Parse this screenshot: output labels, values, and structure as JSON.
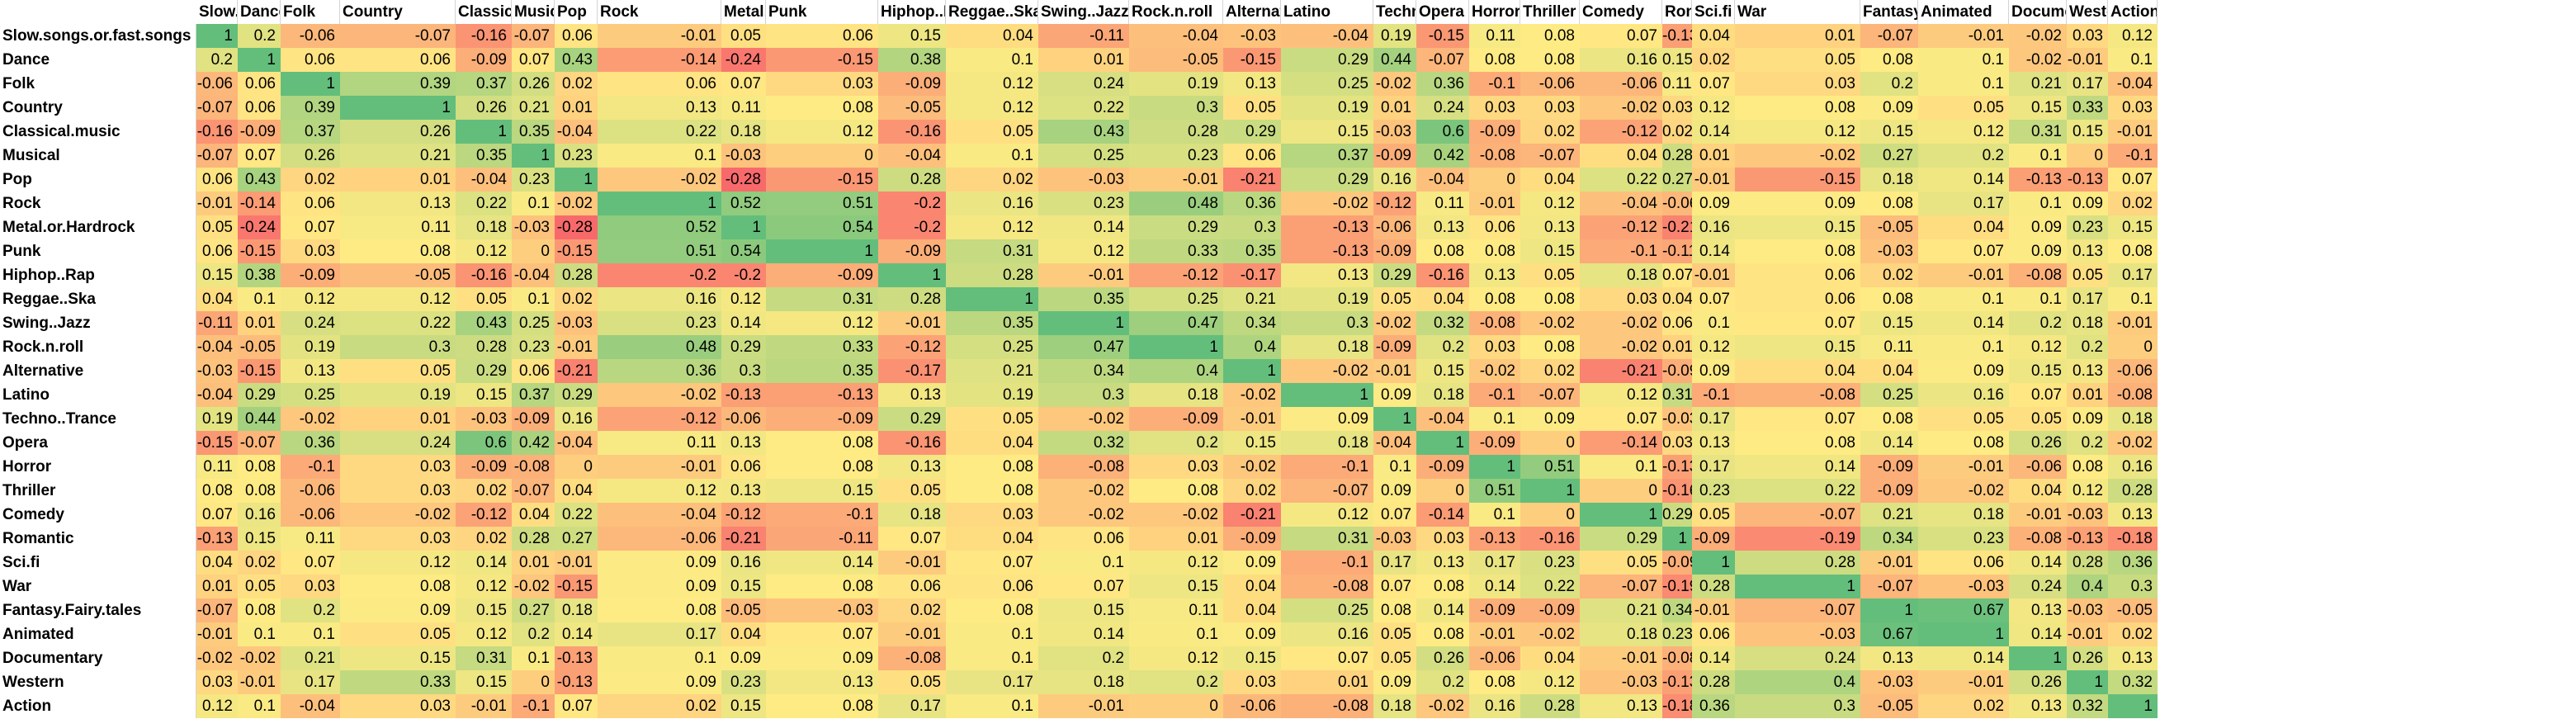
{
  "chart_data": {
    "type": "heatmap",
    "colors": {
      "low": "#f8696b",
      "mid": "#ffeb84",
      "high": "#63be7b"
    },
    "columns": [
      "Slow.songs.or.fast.songs",
      "Dance",
      "Folk",
      "Country",
      "Classical.music",
      "Musical",
      "Pop",
      "Rock",
      "Metal.or.Hardrock",
      "Punk",
      "Hiphop..Rap",
      "Reggae..Ska",
      "Swing..Jazz",
      "Rock.n.roll",
      "Alternative",
      "Latino",
      "Techno..Trance",
      "Opera",
      "Horror",
      "Thriller",
      "Comedy",
      "Romantic",
      "Sci.fi",
      "War",
      "Fantasy.Fairy.tales",
      "Animated",
      "Documentary",
      "Western",
      "Action"
    ],
    "rows": [
      "Slow.songs.or.fast.songs",
      "Dance",
      "Folk",
      "Country",
      "Classical.music",
      "Musical",
      "Pop",
      "Rock",
      "Metal.or.Hardrock",
      "Punk",
      "Hiphop..Rap",
      "Reggae..Ska",
      "Swing..Jazz",
      "Rock.n.roll",
      "Alternative",
      "Latino",
      "Techno..Trance",
      "Opera",
      "Horror",
      "Thriller",
      "Comedy",
      "Romantic",
      "Sci.fi",
      "War",
      "Fantasy.Fairy.tales",
      "Animated",
      "Documentary",
      "Western",
      "Action"
    ],
    "values": [
      [
        1,
        0.2,
        -0.06,
        -0.07,
        -0.16,
        -0.07,
        0.06,
        -0.01,
        0.05,
        0.06,
        0.15,
        0.04,
        -0.11,
        -0.04,
        -0.03,
        -0.04,
        0.19,
        -0.15,
        0.11,
        0.08,
        0.07,
        -0.13,
        0.04,
        0.01,
        -0.07,
        -0.01,
        -0.02,
        0.03,
        0.12
      ],
      [
        0.2,
        1,
        0.06,
        0.06,
        -0.09,
        0.07,
        0.43,
        -0.14,
        -0.24,
        -0.15,
        0.38,
        0.1,
        0.01,
        -0.05,
        -0.15,
        0.29,
        0.44,
        -0.07,
        0.08,
        0.08,
        0.16,
        0.15,
        0.02,
        0.05,
        0.08,
        0.1,
        -0.02,
        -0.01,
        0.1
      ],
      [
        -0.06,
        0.06,
        1,
        0.39,
        0.37,
        0.26,
        0.02,
        0.06,
        0.07,
        0.03,
        -0.09,
        0.12,
        0.24,
        0.19,
        0.13,
        0.25,
        -0.02,
        0.36,
        -0.1,
        -0.06,
        -0.06,
        0.11,
        0.07,
        0.03,
        0.2,
        0.1,
        0.21,
        0.17,
        -0.04
      ],
      [
        -0.07,
        0.06,
        0.39,
        1,
        0.26,
        0.21,
        0.01,
        0.13,
        0.11,
        0.08,
        -0.05,
        0.12,
        0.22,
        0.3,
        0.05,
        0.19,
        0.01,
        0.24,
        0.03,
        0.03,
        -0.02,
        0.03,
        0.12,
        0.08,
        0.09,
        0.05,
        0.15,
        0.33,
        0.03
      ],
      [
        -0.16,
        -0.09,
        0.37,
        0.26,
        1,
        0.35,
        -0.04,
        0.22,
        0.18,
        0.12,
        -0.16,
        0.05,
        0.43,
        0.28,
        0.29,
        0.15,
        -0.03,
        0.6,
        -0.09,
        0.02,
        -0.12,
        0.02,
        0.14,
        0.12,
        0.15,
        0.12,
        0.31,
        0.15,
        -0.01
      ],
      [
        -0.07,
        0.07,
        0.26,
        0.21,
        0.35,
        1,
        0.23,
        0.1,
        -0.03,
        0,
        -0.04,
        0.1,
        0.25,
        0.23,
        0.06,
        0.37,
        -0.09,
        0.42,
        -0.08,
        -0.07,
        0.04,
        0.28,
        0.01,
        -0.02,
        0.27,
        0.2,
        0.1,
        0,
        -0.1
      ],
      [
        0.06,
        0.43,
        0.02,
        0.01,
        -0.04,
        0.23,
        1,
        -0.02,
        -0.28,
        -0.15,
        0.28,
        0.02,
        -0.03,
        -0.01,
        -0.21,
        0.29,
        0.16,
        -0.04,
        0,
        0.04,
        0.22,
        0.27,
        -0.01,
        -0.15,
        0.18,
        0.14,
        -0.13,
        -0.13,
        0.07
      ],
      [
        -0.01,
        -0.14,
        0.06,
        0.13,
        0.22,
        0.1,
        -0.02,
        1,
        0.52,
        0.51,
        -0.2,
        0.16,
        0.23,
        0.48,
        0.36,
        -0.02,
        -0.12,
        0.11,
        -0.01,
        0.12,
        -0.04,
        -0.06,
        0.09,
        0.09,
        0.08,
        0.17,
        0.1,
        0.09,
        0.02
      ],
      [
        0.05,
        -0.24,
        0.07,
        0.11,
        0.18,
        -0.03,
        -0.28,
        0.52,
        1,
        0.54,
        -0.2,
        0.12,
        0.14,
        0.29,
        0.3,
        -0.13,
        -0.06,
        0.13,
        0.06,
        0.13,
        -0.12,
        -0.21,
        0.16,
        0.15,
        -0.05,
        0.04,
        0.09,
        0.23,
        0.15
      ],
      [
        0.06,
        -0.15,
        0.03,
        0.08,
        0.12,
        0,
        -0.15,
        0.51,
        0.54,
        1,
        -0.09,
        0.31,
        0.12,
        0.33,
        0.35,
        -0.13,
        -0.09,
        0.08,
        0.08,
        0.15,
        -0.1,
        -0.11,
        0.14,
        0.08,
        -0.03,
        0.07,
        0.09,
        0.13,
        0.08
      ],
      [
        0.15,
        0.38,
        -0.09,
        -0.05,
        -0.16,
        -0.04,
        0.28,
        -0.2,
        -0.2,
        -0.09,
        1,
        0.28,
        -0.01,
        -0.12,
        -0.17,
        0.13,
        0.29,
        -0.16,
        0.13,
        0.05,
        0.18,
        0.07,
        -0.01,
        0.06,
        0.02,
        -0.01,
        -0.08,
        0.05,
        0.17
      ],
      [
        0.04,
        0.1,
        0.12,
        0.12,
        0.05,
        0.1,
        0.02,
        0.16,
        0.12,
        0.31,
        0.28,
        1,
        0.35,
        0.25,
        0.21,
        0.19,
        0.05,
        0.04,
        0.08,
        0.08,
        0.03,
        0.04,
        0.07,
        0.06,
        0.08,
        0.1,
        0.1,
        0.17,
        0.1
      ],
      [
        -0.11,
        0.01,
        0.24,
        0.22,
        0.43,
        0.25,
        -0.03,
        0.23,
        0.14,
        0.12,
        -0.01,
        0.35,
        1,
        0.47,
        0.34,
        0.3,
        -0.02,
        0.32,
        -0.08,
        -0.02,
        -0.02,
        0.06,
        0.1,
        0.07,
        0.15,
        0.14,
        0.2,
        0.18,
        -0.01
      ],
      [
        -0.04,
        -0.05,
        0.19,
        0.3,
        0.28,
        0.23,
        -0.01,
        0.48,
        0.29,
        0.33,
        -0.12,
        0.25,
        0.47,
        1,
        0.4,
        0.18,
        -0.09,
        0.2,
        0.03,
        0.08,
        -0.02,
        0.01,
        0.12,
        0.15,
        0.11,
        0.1,
        0.12,
        0.2,
        0
      ],
      [
        -0.03,
        -0.15,
        0.13,
        0.05,
        0.29,
        0.06,
        -0.21,
        0.36,
        0.3,
        0.35,
        -0.17,
        0.21,
        0.34,
        0.4,
        1,
        -0.02,
        -0.01,
        0.15,
        -0.02,
        0.02,
        -0.21,
        -0.09,
        0.09,
        0.04,
        0.04,
        0.09,
        0.15,
        0.13,
        -0.06
      ],
      [
        -0.04,
        0.29,
        0.25,
        0.19,
        0.15,
        0.37,
        0.29,
        -0.02,
        -0.13,
        -0.13,
        0.13,
        0.19,
        0.3,
        0.18,
        -0.02,
        1,
        0.09,
        0.18,
        -0.1,
        -0.07,
        0.12,
        0.31,
        -0.1,
        -0.08,
        0.25,
        0.16,
        0.07,
        0.01,
        -0.08
      ],
      [
        0.19,
        0.44,
        -0.02,
        0.01,
        -0.03,
        -0.09,
        0.16,
        -0.12,
        -0.06,
        -0.09,
        0.29,
        0.05,
        -0.02,
        -0.09,
        -0.01,
        0.09,
        1,
        -0.04,
        0.1,
        0.09,
        0.07,
        -0.03,
        0.17,
        0.07,
        0.08,
        0.05,
        0.05,
        0.09,
        0.18
      ],
      [
        -0.15,
        -0.07,
        0.36,
        0.24,
        0.6,
        0.42,
        -0.04,
        0.11,
        0.13,
        0.08,
        -0.16,
        0.04,
        0.32,
        0.2,
        0.15,
        0.18,
        -0.04,
        1,
        -0.09,
        0,
        -0.14,
        0.03,
        0.13,
        0.08,
        0.14,
        0.08,
        0.26,
        0.2,
        -0.02
      ],
      [
        0.11,
        0.08,
        -0.1,
        0.03,
        -0.09,
        -0.08,
        0,
        -0.01,
        0.06,
        0.08,
        0.13,
        0.08,
        -0.08,
        0.03,
        -0.02,
        -0.1,
        0.1,
        -0.09,
        1,
        0.51,
        0.1,
        -0.13,
        0.17,
        0.14,
        -0.09,
        -0.01,
        -0.06,
        0.08,
        0.16
      ],
      [
        0.08,
        0.08,
        -0.06,
        0.03,
        0.02,
        -0.07,
        0.04,
        0.12,
        0.13,
        0.15,
        0.05,
        0.08,
        -0.02,
        0.08,
        0.02,
        -0.07,
        0.09,
        0,
        0.51,
        1,
        0,
        -0.16,
        0.23,
        0.22,
        -0.09,
        -0.02,
        0.04,
        0.12,
        0.28
      ],
      [
        0.07,
        0.16,
        -0.06,
        -0.02,
        -0.12,
        0.04,
        0.22,
        -0.04,
        -0.12,
        -0.1,
        0.18,
        0.03,
        -0.02,
        -0.02,
        -0.21,
        0.12,
        0.07,
        -0.14,
        0.1,
        0,
        1,
        0.29,
        0.05,
        -0.07,
        0.21,
        0.18,
        -0.01,
        -0.03,
        0.13
      ],
      [
        -0.13,
        0.15,
        0.11,
        0.03,
        0.02,
        0.28,
        0.27,
        -0.06,
        -0.21,
        -0.11,
        0.07,
        0.04,
        0.06,
        0.01,
        -0.09,
        0.31,
        -0.03,
        0.03,
        -0.13,
        -0.16,
        0.29,
        1,
        -0.09,
        -0.19,
        0.34,
        0.23,
        -0.08,
        -0.13,
        -0.18
      ],
      [
        0.04,
        0.02,
        0.07,
        0.12,
        0.14,
        0.01,
        -0.01,
        0.09,
        0.16,
        0.14,
        -0.01,
        0.07,
        0.1,
        0.12,
        0.09,
        -0.1,
        0.17,
        0.13,
        0.17,
        0.23,
        0.05,
        -0.09,
        1,
        0.28,
        -0.01,
        0.06,
        0.14,
        0.28,
        0.36
      ],
      [
        0.01,
        0.05,
        0.03,
        0.08,
        0.12,
        -0.02,
        -0.15,
        0.09,
        0.15,
        0.08,
        0.06,
        0.06,
        0.07,
        0.15,
        0.04,
        -0.08,
        0.07,
        0.08,
        0.14,
        0.22,
        -0.07,
        -0.19,
        0.28,
        1,
        -0.07,
        -0.03,
        0.24,
        0.4,
        0.3
      ],
      [
        -0.07,
        0.08,
        0.2,
        0.09,
        0.15,
        0.27,
        0.18,
        0.08,
        -0.05,
        -0.03,
        0.02,
        0.08,
        0.15,
        0.11,
        0.04,
        0.25,
        0.08,
        0.14,
        -0.09,
        -0.09,
        0.21,
        0.34,
        -0.01,
        -0.07,
        1,
        0.67,
        0.13,
        -0.03,
        -0.05
      ],
      [
        -0.01,
        0.1,
        0.1,
        0.05,
        0.12,
        0.2,
        0.14,
        0.17,
        0.04,
        0.07,
        -0.01,
        0.1,
        0.14,
        0.1,
        0.09,
        0.16,
        0.05,
        0.08,
        -0.01,
        -0.02,
        0.18,
        0.23,
        0.06,
        -0.03,
        0.67,
        1,
        0.14,
        -0.01,
        0.02
      ],
      [
        -0.02,
        -0.02,
        0.21,
        0.15,
        0.31,
        0.1,
        -0.13,
        0.1,
        0.09,
        0.09,
        -0.08,
        0.1,
        0.2,
        0.12,
        0.15,
        0.07,
        0.05,
        0.26,
        -0.06,
        0.04,
        -0.01,
        -0.08,
        0.14,
        0.24,
        0.13,
        0.14,
        1,
        0.26,
        0.13
      ],
      [
        0.03,
        -0.01,
        0.17,
        0.33,
        0.15,
        0,
        -0.13,
        0.09,
        0.23,
        0.13,
        0.05,
        0.17,
        0.18,
        0.2,
        0.03,
        0.01,
        0.09,
        0.2,
        0.08,
        0.12,
        -0.03,
        -0.13,
        0.28,
        0.4,
        -0.03,
        -0.01,
        0.26,
        1,
        0.32
      ],
      [
        0.12,
        0.1,
        -0.04,
        0.03,
        -0.01,
        -0.1,
        0.07,
        0.02,
        0.15,
        0.08,
        0.17,
        0.1,
        -0.01,
        0,
        -0.06,
        -0.08,
        0.18,
        -0.02,
        0.16,
        0.28,
        0.13,
        -0.18,
        0.36,
        0.3,
        -0.05,
        0.02,
        0.13,
        0.32,
        1
      ]
    ]
  }
}
